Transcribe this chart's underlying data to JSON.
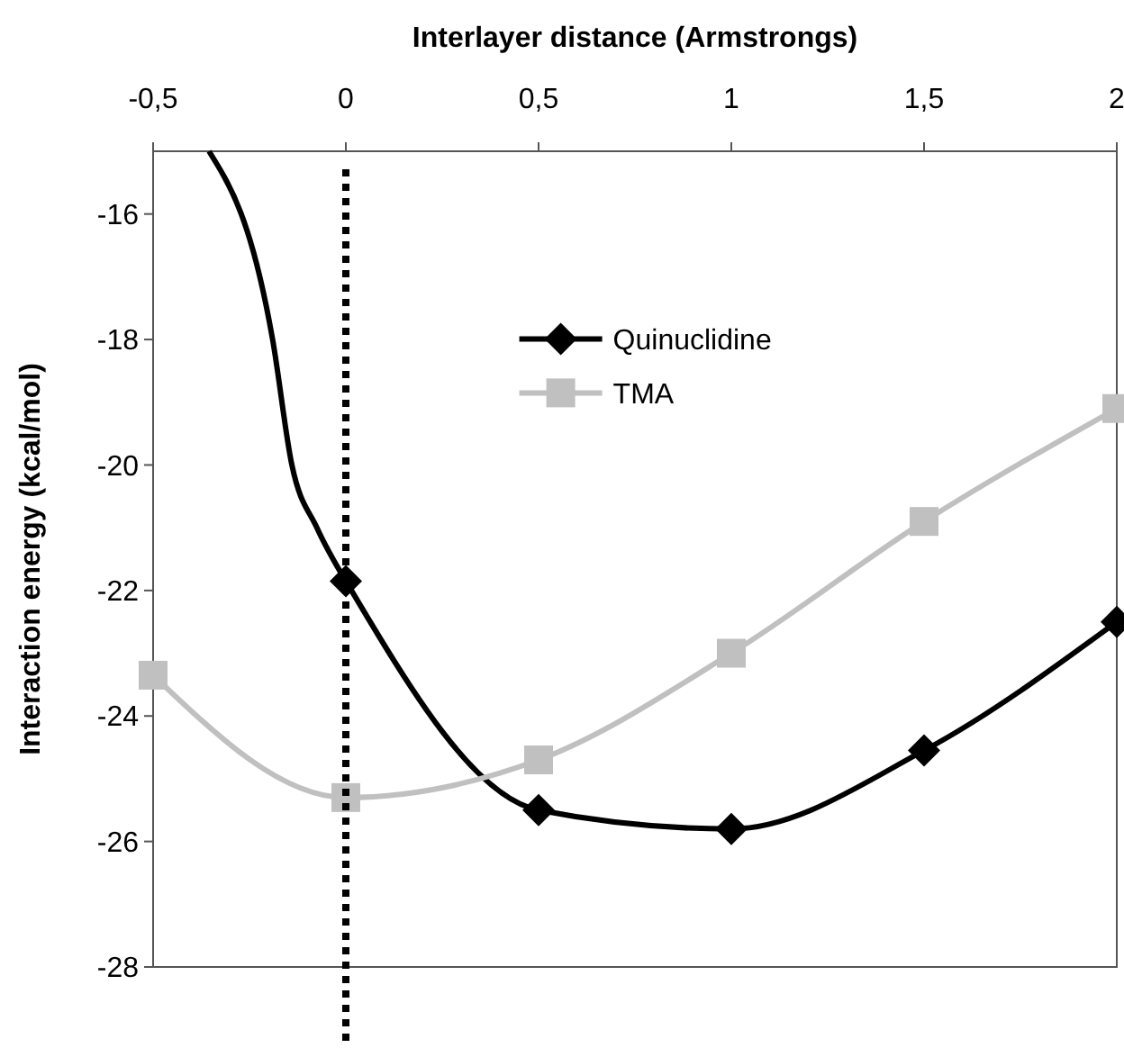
{
  "chart_data": {
    "type": "line",
    "xlabel": "Interlayer distance (Armstrongs)",
    "ylabel": "Interaction energy (kcal/mol)",
    "xlim": [
      -0.5,
      2
    ],
    "xticks": [
      {
        "value": -0.5,
        "label": "-0,5"
      },
      0,
      {
        "value": 0.5,
        "label": "0,5"
      },
      1,
      {
        "value": 1.5,
        "label": "1,5"
      },
      2
    ],
    "ylim": [
      -28,
      -15
    ],
    "yticks": [
      -28,
      -26,
      -24,
      -22,
      -20,
      -18,
      -16
    ],
    "grid": false,
    "legend": "top",
    "line_style": "solid",
    "ref_lines": [
      {
        "axis": "x",
        "value": 0,
        "label": null,
        "color": "#000000",
        "line_style": "dotted"
      }
    ],
    "series": [
      {
        "color": "#000000",
        "marker": "none",
        "x": [
          -0.355,
          -0.19,
          -0.14,
          -0.075,
          0
        ],
        "values": [
          -15,
          -18,
          -20,
          -21,
          -21.85
        ]
      },
      {
        "name": "Quinuclidine",
        "color": "#000000",
        "marker": "diamond",
        "x": [
          0,
          0.5,
          1,
          1.5,
          2
        ],
        "values": [
          -21.85,
          -25.5,
          -25.8,
          -24.55,
          -22.5
        ]
      },
      {
        "name": "TMA",
        "color": "#c0c0c0",
        "marker": "square",
        "x": [
          -0.5,
          0,
          0.5,
          1,
          1.5,
          2
        ],
        "values": [
          -23.35,
          -25.3,
          -24.7,
          -23.0,
          -20.9,
          -19.1
        ]
      }
    ]
  }
}
